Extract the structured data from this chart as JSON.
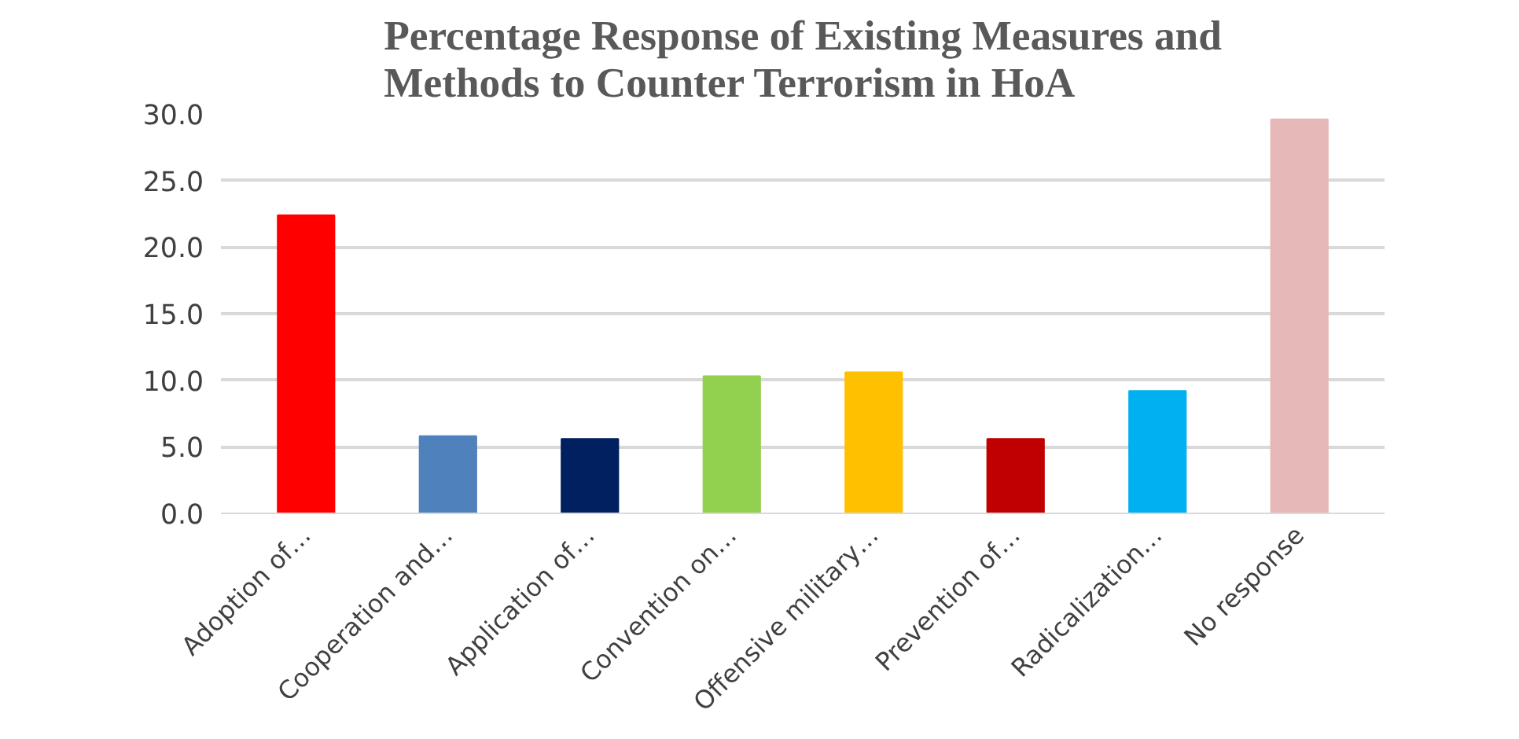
{
  "chart_data": {
    "type": "bar",
    "title": "Percentage Response of Existing Measures and\nMethods to Counter Terrorism in HoA",
    "categories": [
      "Adoption of…",
      "Cooperation and…",
      "Application of…",
      "Convention on…",
      "Offensive military…",
      "Prevention of…",
      "Radicalization…",
      "No response"
    ],
    "values": [
      22.4,
      5.8,
      5.6,
      10.3,
      10.6,
      5.6,
      9.2,
      29.6
    ],
    "colors": [
      "#ff0000",
      "#4f81bd",
      "#002060",
      "#92d050",
      "#ffc000",
      "#c00000",
      "#00b0f0",
      "#e6b8b7"
    ],
    "ylim": [
      0,
      30
    ],
    "yticks": [
      {
        "value": 0,
        "label": "0.0"
      },
      {
        "value": 5,
        "label": "5.0"
      },
      {
        "value": 10,
        "label": "10.0"
      },
      {
        "value": 15,
        "label": "15.0"
      },
      {
        "value": 20,
        "label": "20.0"
      },
      {
        "value": 25,
        "label": "25.0"
      },
      {
        "value": 30,
        "label": "30.0"
      }
    ],
    "grid": "y"
  }
}
